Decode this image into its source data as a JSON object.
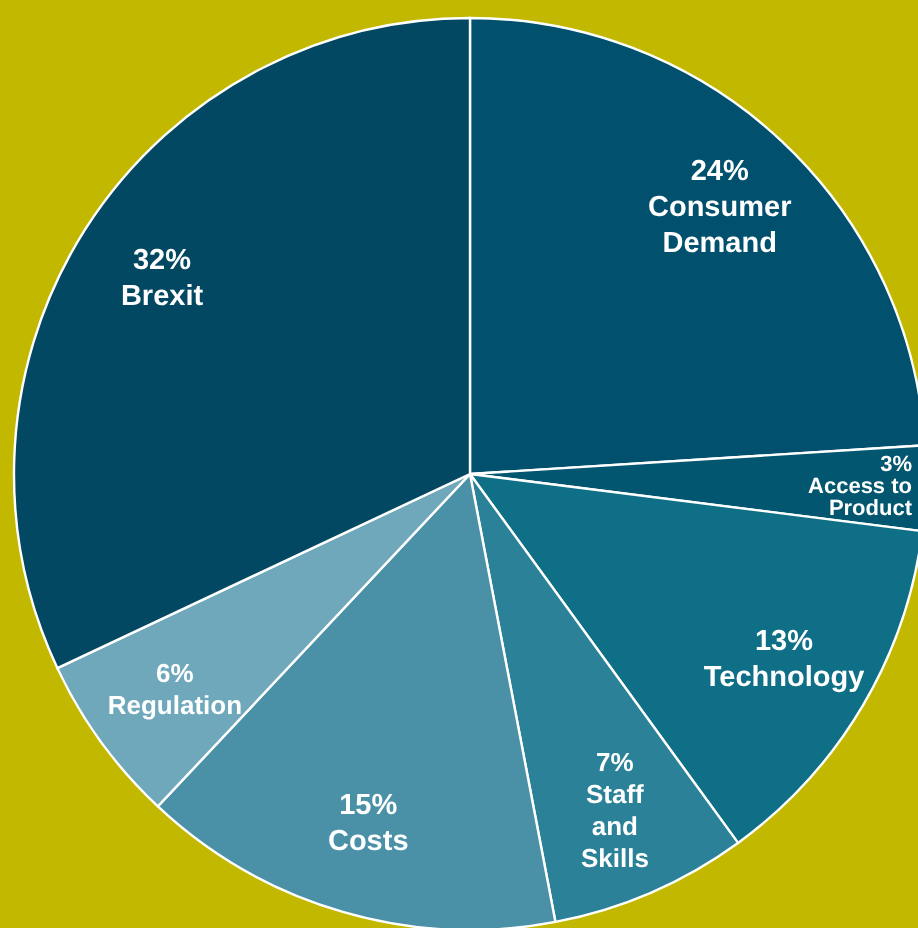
{
  "chart_data": {
    "type": "pie",
    "categories": [
      "Consumer Demand",
      "Access to Product",
      "Technology",
      "Staff and Skills",
      "Costs",
      "Regulation",
      "Brexit"
    ],
    "values": [
      24,
      3,
      13,
      7,
      15,
      6,
      32
    ],
    "colors": [
      "#01506d",
      "#02566f",
      "#0e6f87",
      "#2b8298",
      "#4a91a8",
      "#6ea8ba",
      "#034862"
    ],
    "value_labels": [
      "24%",
      "3%",
      "13%",
      "7%",
      "15%",
      "6%",
      "32%"
    ]
  }
}
